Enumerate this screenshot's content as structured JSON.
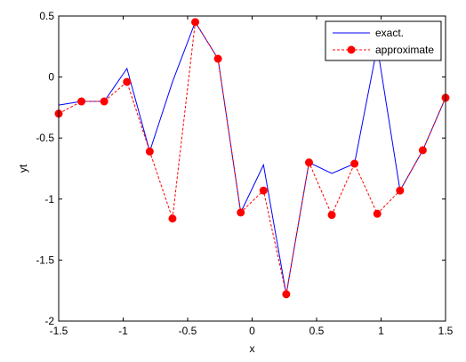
{
  "chart_data": {
    "type": "line",
    "title": "",
    "xlabel": "x",
    "ylabel": "yt",
    "xlim": [
      -1.5,
      1.5
    ],
    "ylim": [
      -2,
      0.5
    ],
    "grid": false,
    "legend_position": "top-right",
    "x_ticks": [
      -1.5,
      -1,
      -0.5,
      0,
      0.5,
      1,
      1.5
    ],
    "x_tick_labels": [
      "-1.5",
      "-1",
      "-0.5",
      "0",
      "0.5",
      "1",
      "1.5"
    ],
    "y_ticks": [
      -2,
      -1.5,
      -1,
      -0.5,
      0,
      0.5
    ],
    "y_tick_labels": [
      "-2",
      "-1.5",
      "-1",
      "-0.5",
      "0",
      "0.5"
    ],
    "x": [
      -1.5,
      -1.3235,
      -1.1471,
      -0.9706,
      -0.7941,
      -0.6176,
      -0.4412,
      -0.2647,
      -0.0882,
      0.0882,
      0.2647,
      0.4412,
      0.6176,
      0.7941,
      0.9706,
      1.1471,
      1.3235,
      1.5
    ],
    "series": [
      {
        "name": "exact.",
        "color": "#0000ff",
        "style": "solid",
        "marker": "none",
        "values": [
          -0.23,
          -0.2,
          -0.2,
          0.07,
          -0.61,
          -0.04,
          0.45,
          0.15,
          -1.11,
          -0.72,
          -1.78,
          -0.7,
          -0.79,
          -0.71,
          0.25,
          -0.93,
          -0.6,
          -0.17
        ]
      },
      {
        "name": "approximate",
        "color": "#ff0000",
        "style": "dashed",
        "marker": "circle",
        "values": [
          -0.3,
          -0.2,
          -0.2,
          -0.04,
          -0.61,
          -1.16,
          0.45,
          0.15,
          -1.11,
          -0.93,
          -1.78,
          -0.7,
          -1.13,
          -0.71,
          -1.12,
          -0.93,
          -0.6,
          -0.17
        ]
      }
    ]
  }
}
